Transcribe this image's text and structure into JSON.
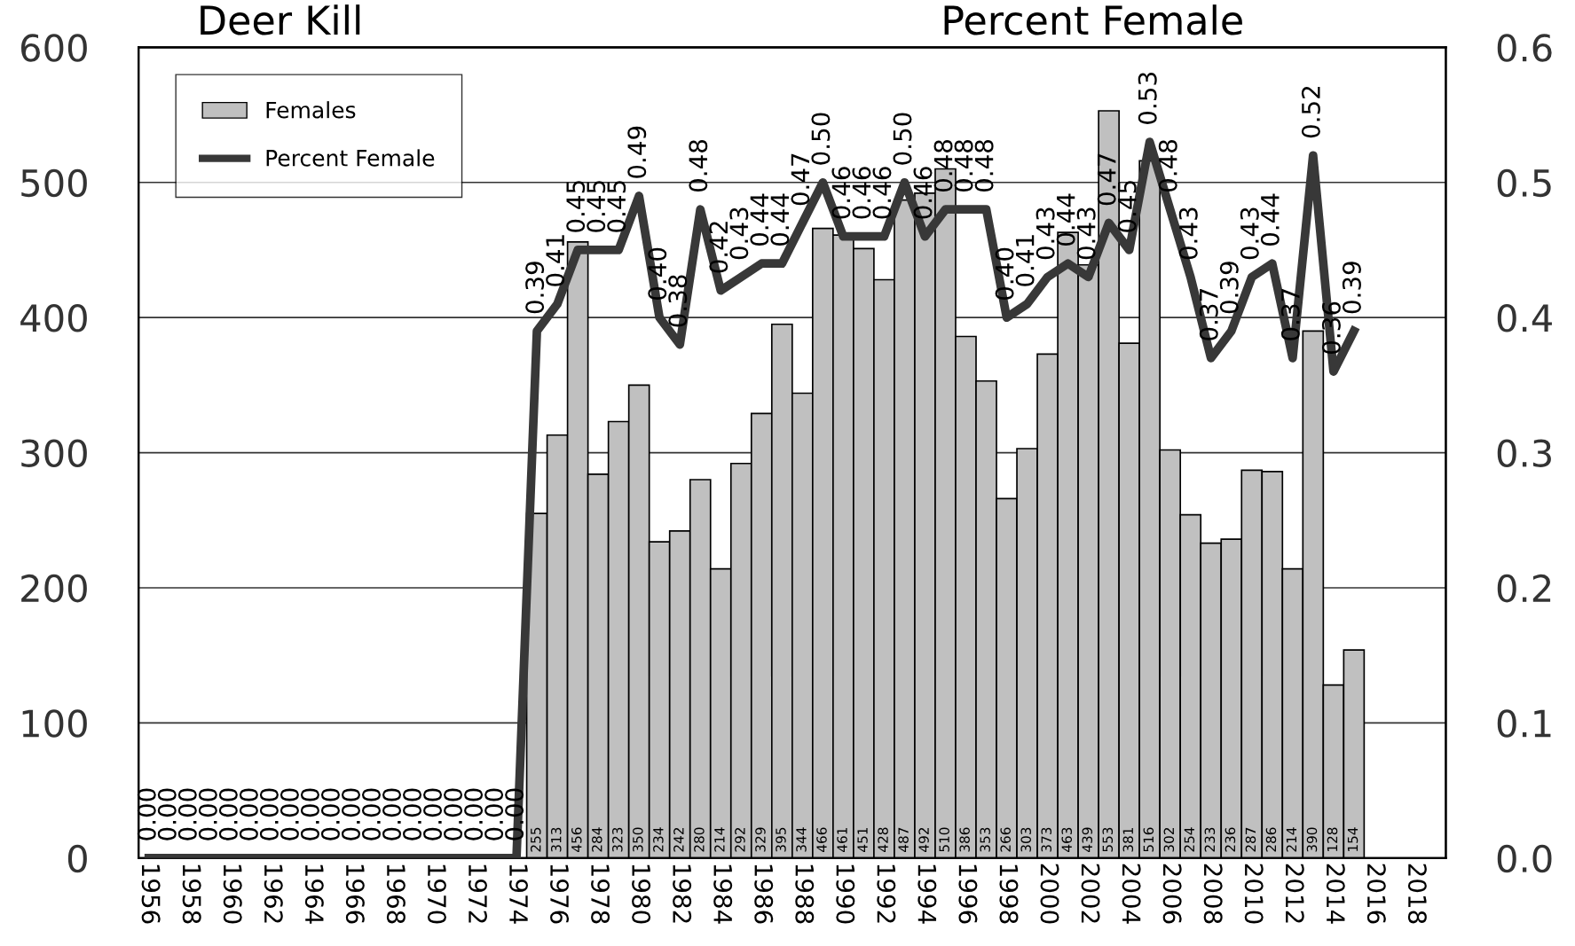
{
  "chart_data": {
    "type": "bar",
    "ylabel": "Deer Kill",
    "y2label": "Percent Female",
    "categories": [
      "1956",
      null,
      "1958",
      null,
      "1960",
      null,
      "1962",
      null,
      "1964",
      null,
      "1966",
      null,
      "1968",
      null,
      "1970",
      null,
      "1972",
      null,
      "1974",
      null,
      "1976",
      null,
      "1978",
      null,
      "1980",
      null,
      "1982",
      null,
      "1984",
      null,
      "1986",
      null,
      "1988",
      null,
      "1990",
      null,
      "1992",
      null,
      "1994",
      null,
      "1996",
      null,
      "1998",
      null,
      "2000",
      null,
      "2002",
      null,
      "2004",
      null,
      "2006",
      null,
      "2008",
      null,
      "2010",
      null,
      "2012",
      null,
      "2014",
      null,
      "2016",
      null,
      "2018",
      null
    ],
    "series": [
      {
        "name": "Females",
        "color": "#c0c0c0",
        "data_labels": true,
        "values": [
          null,
          null,
          null,
          null,
          null,
          null,
          null,
          null,
          null,
          null,
          null,
          null,
          null,
          null,
          null,
          null,
          null,
          null,
          null,
          255,
          313,
          456,
          284,
          323,
          350,
          234,
          242,
          280,
          214,
          292,
          329,
          395,
          344,
          466,
          461,
          451,
          428,
          487,
          492,
          510,
          386,
          353,
          266,
          303,
          373,
          463,
          439,
          553,
          381,
          516,
          302,
          254,
          233,
          236,
          287,
          286,
          214,
          390,
          128,
          154,
          null,
          null,
          null,
          null
        ]
      },
      {
        "name": "Percent Female",
        "type": "line",
        "axis": "y2",
        "color": "#383838",
        "values": [
          0,
          0,
          0,
          0,
          0,
          0,
          0,
          0,
          0,
          0,
          0,
          0,
          0,
          0,
          0,
          0,
          0,
          0,
          0,
          0.39,
          0.41,
          0.45,
          0.45,
          0.45,
          0.49,
          0.4,
          0.38,
          0.48,
          0.42,
          0.43,
          0.44,
          0.44,
          0.47,
          0.5,
          0.46,
          0.46,
          0.46,
          0.5,
          0.46,
          0.48,
          0.48,
          0.48,
          0.4,
          0.41,
          0.43,
          0.44,
          0.43,
          0.47,
          0.45,
          0.53,
          0.48,
          0.43,
          0.37,
          0.39,
          0.43,
          0.44,
          0.37,
          0.52,
          0.36,
          0.39,
          null,
          null,
          null,
          null
        ],
        "value_labels": [
          "0.00",
          "0.00",
          "0.00",
          "0.00",
          "0.00",
          "0.00",
          "0.00",
          "0.00",
          "0.00",
          "0.00",
          "0.00",
          "0.00",
          "0.00",
          "0.00",
          "0.00",
          "0.00",
          "0.00",
          "0.00",
          "0.00",
          "0.39",
          "0.41",
          "0.45",
          "0.45",
          "0.45",
          "0.49",
          "0.40",
          "0.38",
          "0.48",
          "0.42",
          "0.43",
          "0.44",
          "0.44",
          "0.47",
          "0.50",
          "0.46",
          "0.46",
          "0.46",
          "0.50",
          "0.46",
          "0.48",
          "0.48",
          "0.48",
          "0.40",
          "0.41",
          "0.43",
          "0.44",
          "0.43",
          "0.47",
          "0.45",
          "0.53",
          "0.48",
          "0.43",
          "0.37",
          "0.39",
          "0.43",
          "0.44",
          "0.37",
          "0.52",
          "0.36",
          "0.39",
          null,
          null,
          null,
          null
        ]
      }
    ],
    "ylim": [
      0,
      600
    ],
    "yticks": [
      0,
      100,
      200,
      300,
      400,
      500,
      600
    ],
    "y2lim": [
      0,
      0.6
    ],
    "y2ticks": [
      {
        "value": 0,
        "label": "0.0"
      },
      {
        "value": 0.1,
        "label": "0.1"
      },
      {
        "value": 0.2,
        "label": "0.2"
      },
      {
        "value": 0.3,
        "label": "0.3"
      },
      {
        "value": 0.4,
        "label": "0.4"
      },
      {
        "value": 0.5,
        "label": "0.5"
      },
      {
        "value": 0.6,
        "label": "0.6"
      }
    ],
    "grid": "y",
    "legend": "top left"
  }
}
